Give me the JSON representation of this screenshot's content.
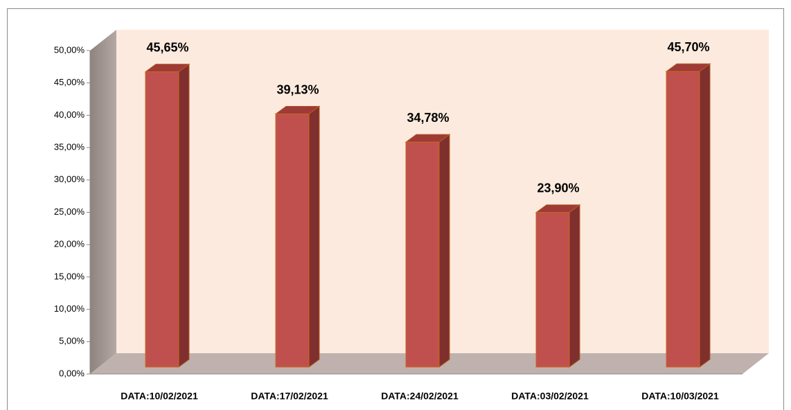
{
  "chart_data": {
    "type": "bar3d",
    "categories": [
      "DATA:10/02/2021",
      "DATA:17/02/2021",
      "DATA:24/02/2021",
      "DATA:03/02/2021",
      "DATA:10/03/2021"
    ],
    "values": [
      45.65,
      39.13,
      34.78,
      23.9,
      45.7
    ],
    "value_labels": [
      "45,65%",
      "39,13%",
      "34,78%",
      "23,90%",
      "45,70%"
    ],
    "color": "#c0504d",
    "ylim": [
      0,
      50
    ],
    "yticks": [
      {
        "value": 0,
        "label": "0,00%"
      },
      {
        "value": 5,
        "label": "5,00%"
      },
      {
        "value": 10,
        "label": "10,00%"
      },
      {
        "value": 15,
        "label": "15,00%"
      },
      {
        "value": 20,
        "label": "20,00%"
      },
      {
        "value": 25,
        "label": "25,00%"
      },
      {
        "value": 30,
        "label": "30,00%"
      },
      {
        "value": 35,
        "label": "35,00%"
      },
      {
        "value": 40,
        "label": "40,00%"
      },
      {
        "value": 45,
        "label": "45,00%"
      },
      {
        "value": 50,
        "label": "50,00%"
      }
    ]
  }
}
